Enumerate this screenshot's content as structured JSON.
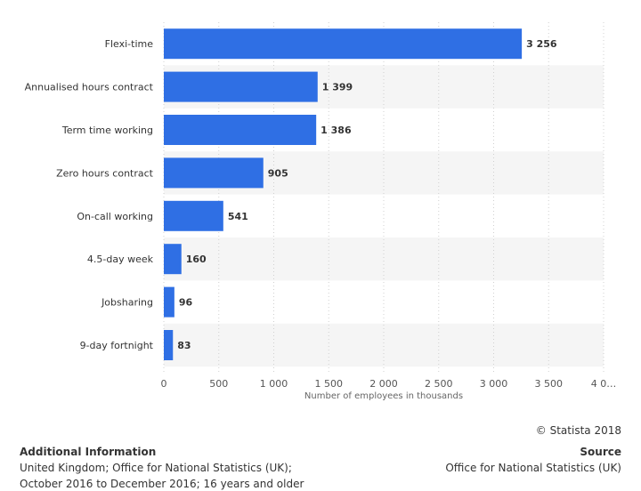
{
  "chart_data": {
    "type": "bar",
    "orientation": "horizontal",
    "categories": [
      "Flexi-time",
      "Annualised hours contract",
      "Term time working",
      "Zero hours contract",
      "On-call working",
      "4.5-day week",
      "Jobsharing",
      "9-day fortnight"
    ],
    "values": [
      3256,
      1399,
      1386,
      905,
      541,
      160,
      96,
      83
    ],
    "value_labels": [
      "3 256",
      "1 399",
      "1 386",
      "905",
      "541",
      "160",
      "96",
      "83"
    ],
    "xlabel": "Number of employees in thousands",
    "xlim": [
      0,
      4000
    ],
    "xticks": [
      0,
      500,
      1000,
      1500,
      2000,
      2500,
      3000,
      3500,
      4000
    ],
    "xtick_labels": [
      "0",
      "500",
      "1 000",
      "1 500",
      "2 000",
      "2 500",
      "3 000",
      "3 500",
      "4 0…"
    ],
    "bar_color": "#2f6fe4",
    "grid": true
  },
  "footer": {
    "copyright": "© Statista 2018",
    "additional_title": "Additional Information",
    "additional_line1": "United Kingdom; Office for National Statistics (UK);",
    "additional_line2": "October 2016 to December 2016; 16 years and older",
    "source_title": "Source",
    "source_text": "Office for National Statistics (UK)"
  }
}
